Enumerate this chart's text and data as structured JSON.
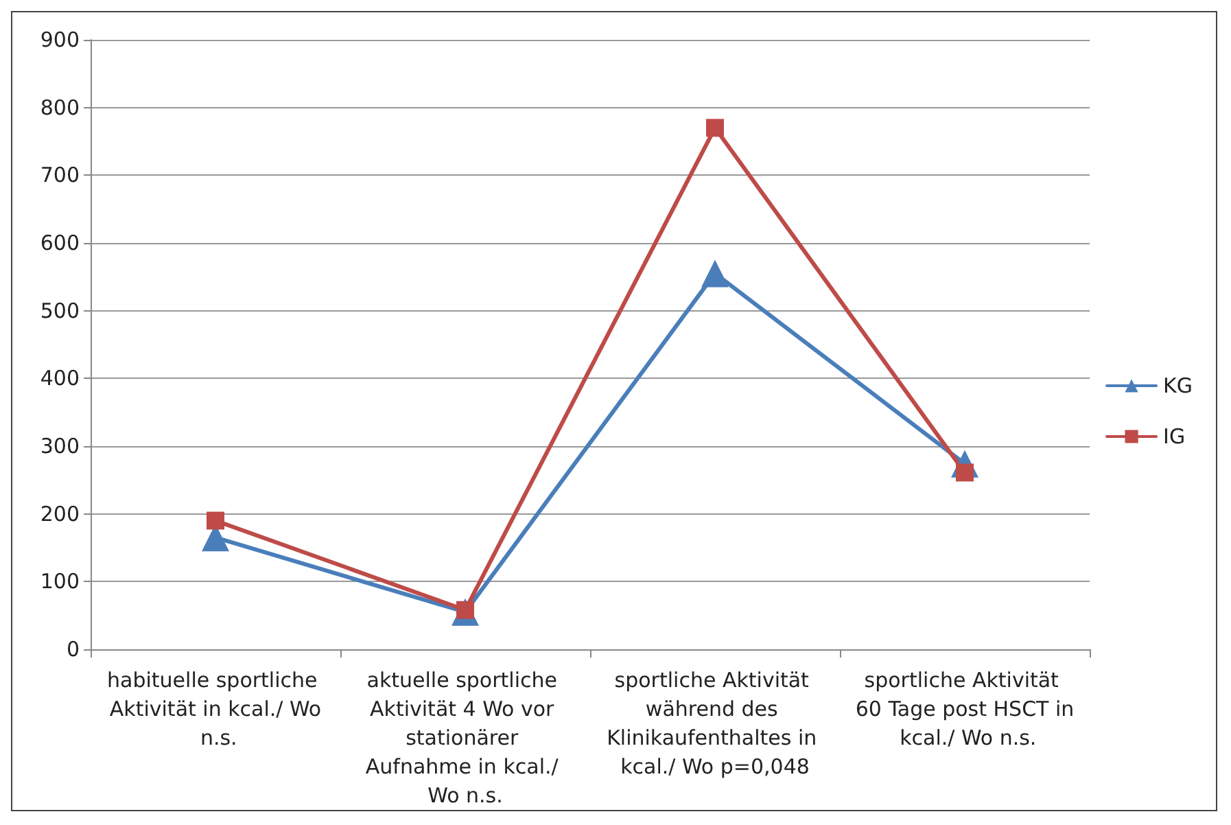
{
  "chart_data": {
    "type": "line",
    "categories": [
      "habituelle sportliche Aktivität in kcal./ Wo n.s.",
      "aktuelle sportliche Aktivität 4 Wo vor stationärer Aufnahme in kcal./ Wo n.s.",
      "sportliche Aktivität während des Klinikaufenthaltes in kcal./ Wo p=0,048",
      "sportliche Aktivität 60 Tage post HSCT in kcal./ Wo n.s."
    ],
    "series": [
      {
        "name": "KG",
        "color": "#4a7ebb",
        "marker": "triangle",
        "values": [
          165,
          55,
          555,
          274
        ]
      },
      {
        "name": "IG",
        "color": "#be4b48",
        "marker": "square",
        "values": [
          190,
          58,
          770,
          261
        ]
      }
    ],
    "ylim": [
      0,
      900
    ],
    "yticks": [
      0,
      100,
      200,
      300,
      400,
      500,
      600,
      700,
      800,
      900
    ],
    "grid": "y",
    "legend": "right",
    "line_style": "solid"
  }
}
